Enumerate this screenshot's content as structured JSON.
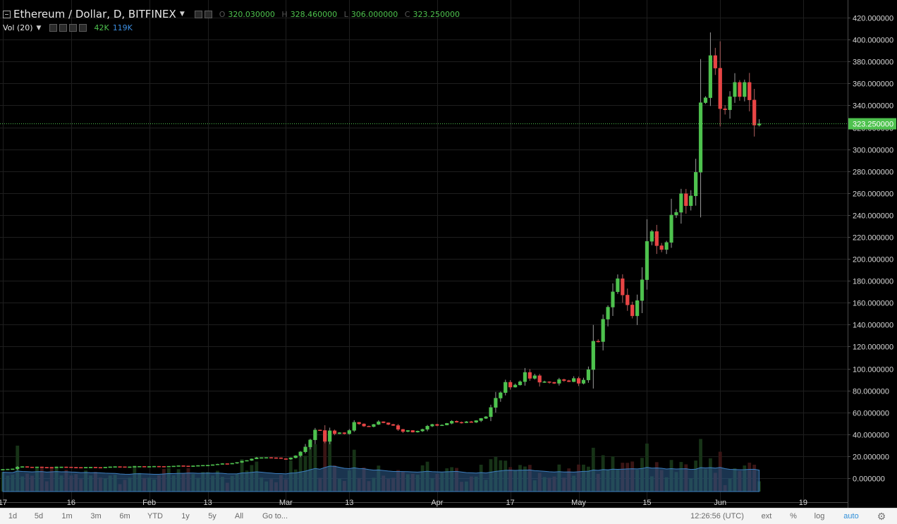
{
  "header": {
    "symbol": "Ethereum / Dollar, D, BITFINEX",
    "open_key": "O",
    "open": "320.030000",
    "high_key": "H",
    "high": "328.460000",
    "low_key": "L",
    "low": "306.000000",
    "close_key": "C",
    "close": "323.250000"
  },
  "volume_panel": {
    "label": "Vol (20)",
    "vol": "42K",
    "vol_ma": "119K"
  },
  "toolbar": {
    "ranges": [
      "1d",
      "5d",
      "1m",
      "3m",
      "6m",
      "YTD",
      "1y",
      "5y",
      "All"
    ],
    "goto": "Go to...",
    "time": "12:26:56 (UTC)",
    "ext": "ext",
    "percent": "%",
    "log": "log",
    "auto": "auto"
  },
  "colors": {
    "up": "#4ec24e",
    "down": "#e84545",
    "volume_ma": "#2f5f8f",
    "price_line": "#4ec24e",
    "background": "#000000"
  },
  "chart_data": {
    "type": "candlestick",
    "title": "Ethereum / Dollar, D, BITFINEX",
    "y_ticks": [
      "420.000000",
      "400.000000",
      "380.000000",
      "360.000000",
      "340.000000",
      "320.000000",
      "300.000000",
      "280.000000",
      "260.000000",
      "240.000000",
      "220.000000",
      "200.000000",
      "180.000000",
      "160.000000",
      "140.000000",
      "120.000000",
      "100.000000",
      "80.000000",
      "60.000000",
      "40.000000",
      "20.000000",
      "0.000000"
    ],
    "ylim": [
      -10,
      428
    ],
    "x_ticks": [
      "17",
      "16",
      "Feb",
      "13",
      "Mar",
      "13",
      "Apr",
      "17",
      "May",
      "15",
      "Jun",
      "19"
    ],
    "last_price_label": "323.250000",
    "closes": [
      8.1,
      8.3,
      8.5,
      10.2,
      10.6,
      10.2,
      10.1,
      10.3,
      10.0,
      9.9,
      9.7,
      10.1,
      10.3,
      10.2,
      10.0,
      9.9,
      9.8,
      10.0,
      10.1,
      9.9,
      9.8,
      10.1,
      10.4,
      10.6,
      10.5,
      10.3,
      10.4,
      10.7,
      10.8,
      10.6,
      10.7,
      10.9,
      10.8,
      10.7,
      10.9,
      11.1,
      11.4,
      11.2,
      11.0,
      11.3,
      11.6,
      11.8,
      11.9,
      12.3,
      12.8,
      13.3,
      13.2,
      13.6,
      14.4,
      15.6,
      16.2,
      17.6,
      18.7,
      18.8,
      18.9,
      18.7,
      18.6,
      17.8,
      17.3,
      18.6,
      20.4,
      24.0,
      28.5,
      34.9,
      44.0,
      43.5,
      33.5,
      43.3,
      40.5,
      41.5,
      40.5,
      43.5,
      51.0,
      49.5,
      47.5,
      47.0,
      49.0,
      51.5,
      50.5,
      49.0,
      48.0,
      44.5,
      42.5,
      43.5,
      42.0,
      43.0,
      44.5,
      47.5,
      49.0,
      48.0,
      48.5,
      50.0,
      52.0,
      51.0,
      50.5,
      51.5,
      51.0,
      52.5,
      54.5,
      56.0,
      64.5,
      73.0,
      78.0,
      87.5,
      83.0,
      85.0,
      88.0,
      96.5,
      91.0,
      93.5,
      87.5,
      88.0,
      87.5,
      86.5,
      90.0,
      89.0,
      88.0,
      91.0,
      86.5,
      89.5,
      99.0,
      125.0,
      124.5,
      145.0,
      156.0,
      170.0,
      182.0,
      167.0,
      158.0,
      148.0,
      162.0,
      181.0,
      216.0,
      225.0,
      212.0,
      208.5,
      215.0,
      240.0,
      242.5,
      259.5,
      248.5,
      257.5,
      279.0,
      342.5,
      347.0,
      385.5,
      374.0,
      337.0,
      336.0,
      348.0,
      361.0,
      348.0,
      361.0,
      345.0,
      322.0,
      323.25
    ]
  }
}
